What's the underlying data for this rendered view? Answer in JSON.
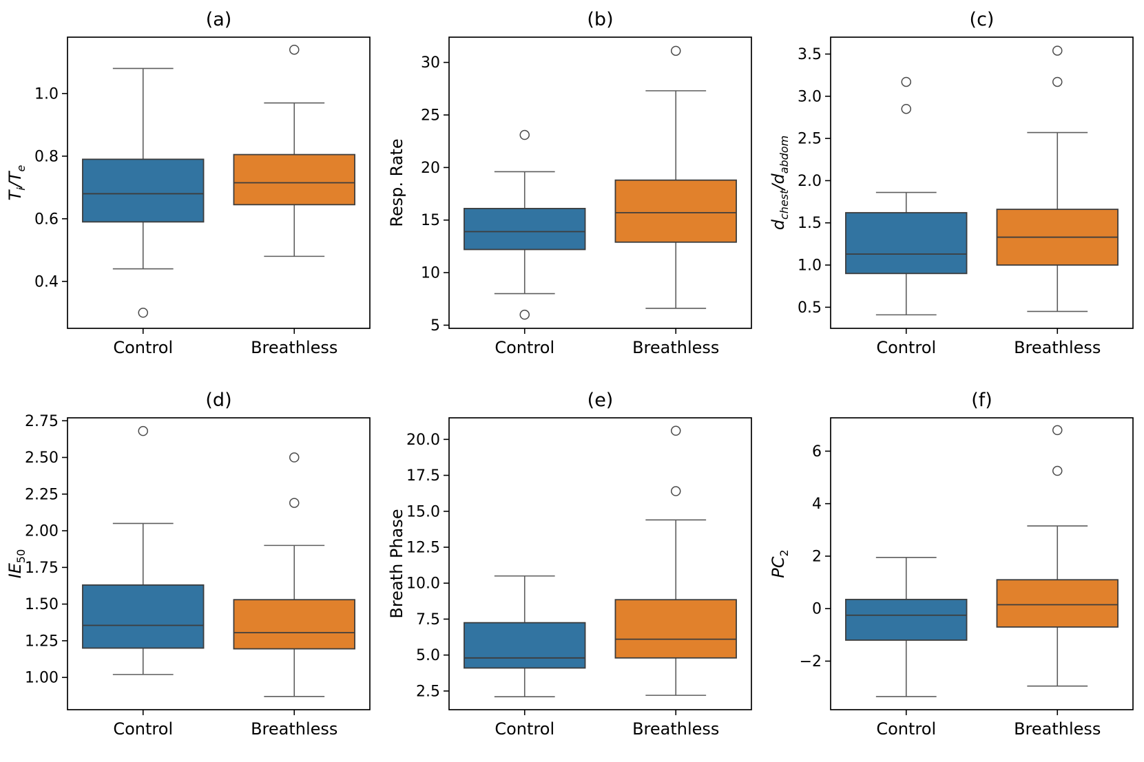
{
  "figure": {
    "background": "#ffffff",
    "categories": [
      "Control",
      "Breathless"
    ],
    "control_color": "#3274A1",
    "breathless_color": "#E1812C",
    "box_edge_color": "#3D3D3D",
    "whisker_color": "#5C5C5C",
    "flier_color": "#4A4A4A",
    "spine_color": "#000000",
    "text_color": "#000000"
  },
  "chart_data": [
    {
      "type": "box",
      "title": "(a)",
      "ylabel_segments": [
        {
          "t": "T",
          "it": true
        },
        {
          "t": "i",
          "it": true,
          "sub": true
        },
        {
          "t": "/",
          "it": true
        },
        {
          "t": "T",
          "it": true
        },
        {
          "t": "e",
          "it": true,
          "sub": true
        }
      ],
      "categories": [
        "Control",
        "Breathless"
      ],
      "ylim": [
        0.25,
        1.18
      ],
      "yticks": [
        0.4,
        0.6,
        0.8,
        1.0
      ],
      "ytick_labels": [
        "0.4",
        "0.6",
        "0.8",
        "1.0"
      ],
      "boxes": [
        {
          "group": "Control",
          "whislo": 0.44,
          "q1": 0.59,
          "med": 0.68,
          "q3": 0.79,
          "whishi": 1.08,
          "fliers": [
            0.3
          ],
          "color": "#3274A1"
        },
        {
          "group": "Breathless",
          "whislo": 0.48,
          "q1": 0.645,
          "med": 0.715,
          "q3": 0.805,
          "whishi": 0.97,
          "fliers": [
            1.14
          ],
          "color": "#E1812C"
        }
      ]
    },
    {
      "type": "box",
      "title": "(b)",
      "ylabel_segments": [
        {
          "t": "Resp. Rate",
          "it": false
        }
      ],
      "categories": [
        "Control",
        "Breathless"
      ],
      "ylim": [
        4.7,
        32.4
      ],
      "yticks": [
        5,
        10,
        15,
        20,
        25,
        30
      ],
      "ytick_labels": [
        "5",
        "10",
        "15",
        "20",
        "25",
        "30"
      ],
      "boxes": [
        {
          "group": "Control",
          "whislo": 8.0,
          "q1": 12.2,
          "med": 13.9,
          "q3": 16.1,
          "whishi": 19.6,
          "fliers": [
            23.1,
            6.0
          ],
          "color": "#3274A1"
        },
        {
          "group": "Breathless",
          "whislo": 6.6,
          "q1": 12.9,
          "med": 15.7,
          "q3": 18.8,
          "whishi": 27.3,
          "fliers": [
            31.1
          ],
          "color": "#E1812C"
        }
      ]
    },
    {
      "type": "box",
      "title": "(c)",
      "ylabel_segments": [
        {
          "t": "d",
          "it": true
        },
        {
          "t": "chest",
          "it": true,
          "sub": true
        },
        {
          "t": "/d",
          "it": true
        },
        {
          "t": "abdom",
          "it": true,
          "sub": true
        }
      ],
      "categories": [
        "Control",
        "Breathless"
      ],
      "ylim": [
        0.25,
        3.7
      ],
      "yticks": [
        0.5,
        1.0,
        1.5,
        2.0,
        2.5,
        3.0,
        3.5
      ],
      "ytick_labels": [
        "0.5",
        "1.0",
        "1.5",
        "2.0",
        "2.5",
        "3.0",
        "3.5"
      ],
      "boxes": [
        {
          "group": "Control",
          "whislo": 0.41,
          "q1": 0.9,
          "med": 1.13,
          "q3": 1.62,
          "whishi": 1.86,
          "fliers": [
            3.17,
            2.85
          ],
          "color": "#3274A1"
        },
        {
          "group": "Breathless",
          "whislo": 0.45,
          "q1": 1.0,
          "med": 1.33,
          "q3": 1.66,
          "whishi": 2.57,
          "fliers": [
            3.54,
            3.17
          ],
          "color": "#E1812C"
        }
      ]
    },
    {
      "type": "box",
      "title": "(d)",
      "ylabel_segments": [
        {
          "t": "IE",
          "it": true
        },
        {
          "t": "50",
          "it": false,
          "sub": true
        }
      ],
      "categories": [
        "Control",
        "Breathless"
      ],
      "ylim": [
        0.78,
        2.77
      ],
      "yticks": [
        1.0,
        1.25,
        1.5,
        1.75,
        2.0,
        2.25,
        2.5,
        2.75
      ],
      "ytick_labels": [
        "1.00",
        "1.25",
        "1.50",
        "1.75",
        "2.00",
        "2.25",
        "2.50",
        "2.75"
      ],
      "boxes": [
        {
          "group": "Control",
          "whislo": 1.02,
          "q1": 1.2,
          "med": 1.355,
          "q3": 1.63,
          "whishi": 2.05,
          "fliers": [
            2.68
          ],
          "color": "#3274A1"
        },
        {
          "group": "Breathless",
          "whislo": 0.87,
          "q1": 1.195,
          "med": 1.305,
          "q3": 1.53,
          "whishi": 1.9,
          "fliers": [
            2.5,
            2.19
          ],
          "color": "#E1812C"
        }
      ]
    },
    {
      "type": "box",
      "title": "(e)",
      "ylabel_segments": [
        {
          "t": "Breath Phase",
          "it": false
        }
      ],
      "categories": [
        "Control",
        "Breathless"
      ],
      "ylim": [
        1.2,
        21.5
      ],
      "yticks": [
        2.5,
        5.0,
        7.5,
        10.0,
        12.5,
        15.0,
        17.5,
        20.0
      ],
      "ytick_labels": [
        "2.5",
        "5.0",
        "7.5",
        "10.0",
        "12.5",
        "15.0",
        "17.5",
        "20.0"
      ],
      "boxes": [
        {
          "group": "Control",
          "whislo": 2.1,
          "q1": 4.1,
          "med": 4.8,
          "q3": 7.25,
          "whishi": 10.5,
          "fliers": [],
          "color": "#3274A1"
        },
        {
          "group": "Breathless",
          "whislo": 2.2,
          "q1": 4.8,
          "med": 6.1,
          "q3": 8.85,
          "whishi": 14.4,
          "fliers": [
            20.6,
            16.4
          ],
          "color": "#E1812C"
        }
      ]
    },
    {
      "type": "box",
      "title": "(f)",
      "ylabel_segments": [
        {
          "t": "PC",
          "it": true
        },
        {
          "t": "2",
          "it": false,
          "sub": true
        }
      ],
      "categories": [
        "Control",
        "Breathless"
      ],
      "ylim": [
        -3.85,
        7.27
      ],
      "yticks": [
        -2,
        0,
        2,
        4,
        6
      ],
      "ytick_labels": [
        "−2",
        "0",
        "2",
        "4",
        "6"
      ],
      "boxes": [
        {
          "group": "Control",
          "whislo": -3.35,
          "q1": -1.2,
          "med": -0.25,
          "q3": 0.35,
          "whishi": 1.95,
          "fliers": [],
          "color": "#3274A1"
        },
        {
          "group": "Breathless",
          "whislo": -2.95,
          "q1": -0.7,
          "med": 0.15,
          "q3": 1.1,
          "whishi": 3.15,
          "fliers": [
            6.8,
            5.25
          ],
          "color": "#E1812C"
        }
      ]
    }
  ]
}
